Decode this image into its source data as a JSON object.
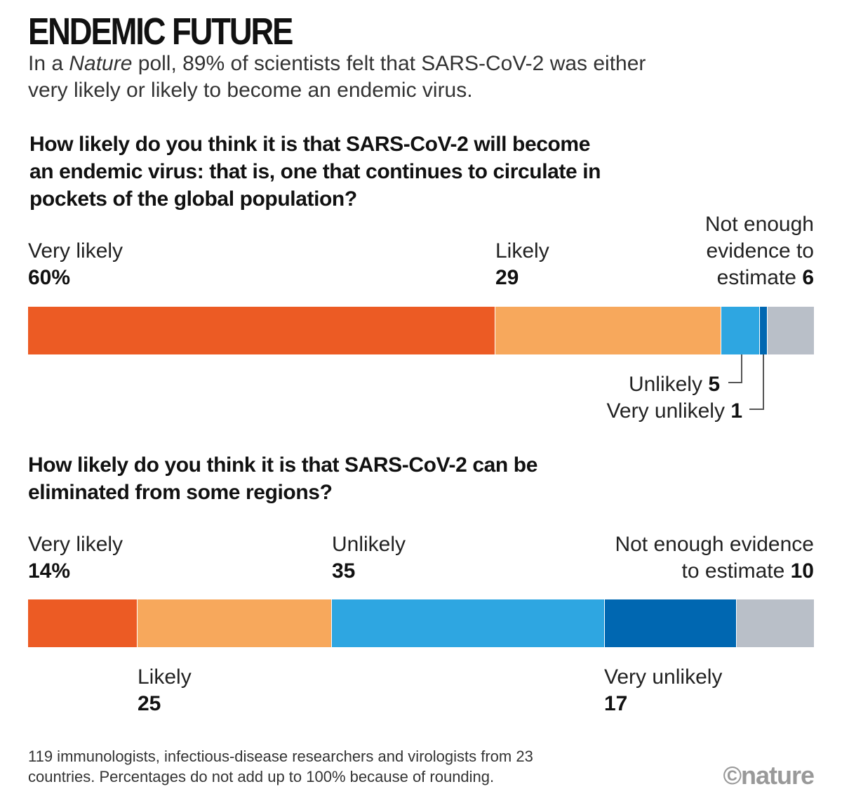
{
  "title": "ENDEMIC FUTURE",
  "subtitle": {
    "before": "In a ",
    "italic": "Nature",
    "after": " poll, 89% of scientists felt that SARS-CoV-2 was either very likely or likely to become an endemic virus."
  },
  "footnote": "119 immunologists, infectious-disease researchers and virologists from 23 countries. Percentages do not add up to 100% because of rounding.",
  "brand": "©nature",
  "colors": {
    "very_likely": "#ec5b24",
    "likely": "#f7a85c",
    "unlikely": "#2ea6e1",
    "very_unlikely": "#0067b1",
    "not_enough_evidence": "#b9bfc8"
  },
  "chart_data": [
    {
      "type": "bar",
      "orientation": "horizontal-stacked",
      "title": "How likely do you think it is that SARS-CoV-2 will become an endemic virus: that is, one that continues to circulate in pockets of the global population?",
      "categories": [
        "Very likely",
        "Likely",
        "Unlikely",
        "Very unlikely",
        "Not enough evidence to estimate"
      ],
      "values": [
        60,
        29,
        5,
        1,
        6
      ],
      "labels": {
        "very_likely": "Very likely",
        "very_likely_value": "60%",
        "likely": "Likely",
        "likely_value": "29",
        "not_enough_1": "Not enough",
        "not_enough_2": "evidence to",
        "not_enough_3": "estimate",
        "not_enough_value": "6",
        "unlikely": "Unlikely",
        "unlikely_value": "5",
        "very_unlikely": "Very unlikely",
        "very_unlikely_value": "1"
      }
    },
    {
      "type": "bar",
      "orientation": "horizontal-stacked",
      "title": "How likely do you think it is that SARS-CoV-2 can be eliminated from some regions?",
      "categories": [
        "Very likely",
        "Likely",
        "Unlikely",
        "Very unlikely",
        "Not enough evidence to estimate"
      ],
      "values": [
        14,
        25,
        35,
        17,
        10
      ],
      "labels": {
        "very_likely": "Very likely",
        "very_likely_value": "14%",
        "likely": "Likely",
        "likely_value": "25",
        "unlikely": "Unlikely",
        "unlikely_value": "35",
        "very_unlikely": "Very unlikely",
        "very_unlikely_value": "17",
        "not_enough_1": "Not enough evidence",
        "not_enough_2": "to estimate",
        "not_enough_value": "10"
      }
    }
  ]
}
